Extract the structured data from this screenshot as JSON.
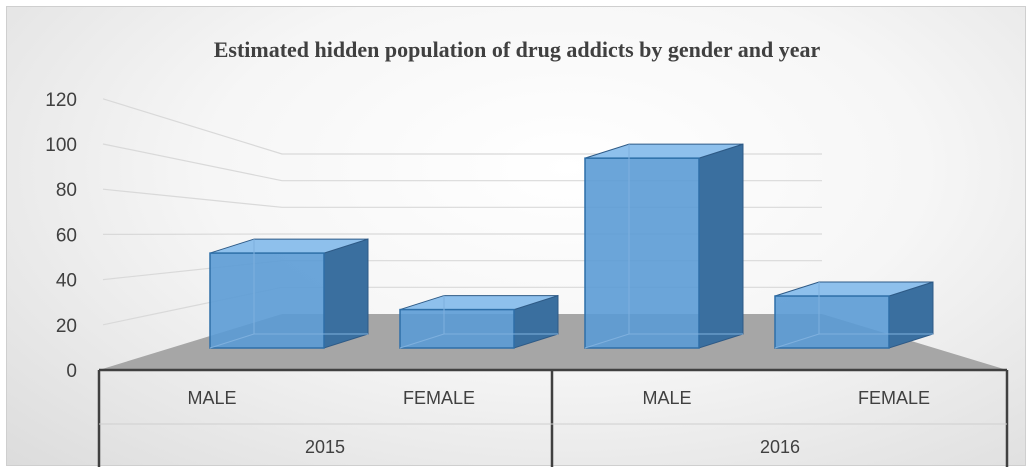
{
  "chart_data": {
    "type": "bar",
    "title": "Estimated hidden population of drug addicts by gender and year",
    "xlabel": "",
    "ylabel": "",
    "ylim": [
      0,
      120
    ],
    "yticks": [
      0,
      20,
      40,
      60,
      80,
      100,
      120
    ],
    "grid": true,
    "legend": "none",
    "bar_color": "#5b9bd5",
    "groups": [
      {
        "label": "2015",
        "categories": [
          "MALE",
          "FEMALE"
        ],
        "values": [
          42,
          17
        ]
      },
      {
        "label": "2016",
        "categories": [
          "MALE",
          "FEMALE"
        ],
        "values": [
          84,
          23
        ]
      }
    ]
  }
}
